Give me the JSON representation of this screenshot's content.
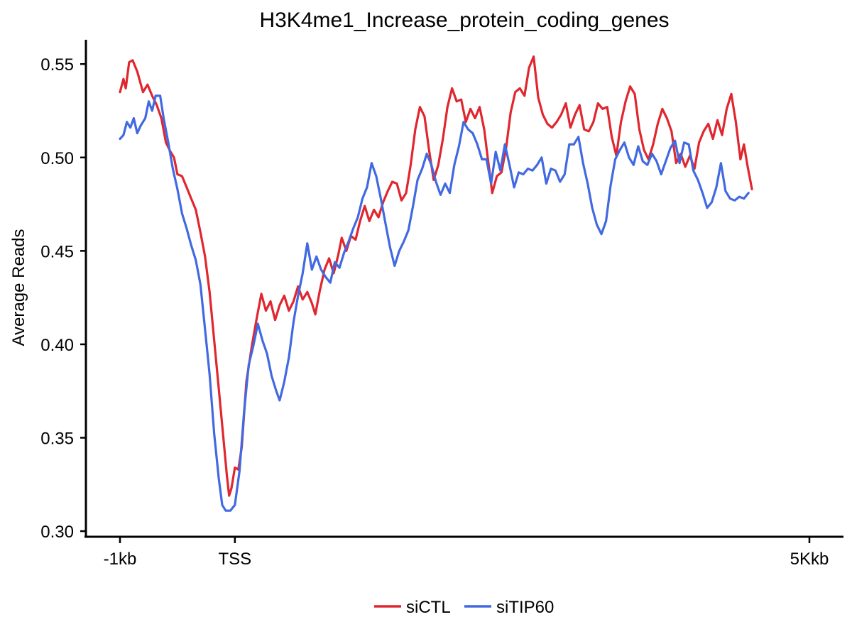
{
  "chart_data": {
    "type": "line",
    "title": "H3K4me1_Increase_protein_coding_genes",
    "xlabel": "",
    "ylabel": "Average Reads",
    "x_tick_labels": [
      "-1kb",
      "TSS",
      "5Kkb"
    ],
    "x_tick_positions": [
      0,
      1,
      6
    ],
    "xlim": [
      0,
      6
    ],
    "ylim": [
      0.297,
      0.563
    ],
    "y_ticks": [
      0.3,
      0.35,
      0.4,
      0.45,
      0.5,
      0.55
    ],
    "y_tick_labels": [
      "0.30",
      "0.35",
      "0.40",
      "0.45",
      "0.50",
      "0.55"
    ],
    "grid": false,
    "legend_position": "bottom",
    "series": [
      {
        "name": "siCTL",
        "color": "#E0262E",
        "points": [
          [
            0.0,
            0.535
          ],
          [
            0.03,
            0.542
          ],
          [
            0.05,
            0.537
          ],
          [
            0.08,
            0.551
          ],
          [
            0.11,
            0.552
          ],
          [
            0.15,
            0.546
          ],
          [
            0.2,
            0.535
          ],
          [
            0.24,
            0.539
          ],
          [
            0.28,
            0.533
          ],
          [
            0.32,
            0.528
          ],
          [
            0.36,
            0.521
          ],
          [
            0.4,
            0.508
          ],
          [
            0.44,
            0.503
          ],
          [
            0.47,
            0.5
          ],
          [
            0.5,
            0.491
          ],
          [
            0.54,
            0.49
          ],
          [
            0.58,
            0.484
          ],
          [
            0.62,
            0.478
          ],
          [
            0.66,
            0.472
          ],
          [
            0.7,
            0.46
          ],
          [
            0.74,
            0.447
          ],
          [
            0.78,
            0.428
          ],
          [
            0.82,
            0.402
          ],
          [
            0.86,
            0.376
          ],
          [
            0.9,
            0.35
          ],
          [
            0.93,
            0.33
          ],
          [
            0.95,
            0.319
          ],
          [
            0.97,
            0.323
          ],
          [
            1.0,
            0.334
          ],
          [
            1.03,
            0.333
          ],
          [
            1.06,
            0.345
          ],
          [
            1.1,
            0.38
          ],
          [
            1.15,
            0.4
          ],
          [
            1.19,
            0.414
          ],
          [
            1.23,
            0.427
          ],
          [
            1.27,
            0.418
          ],
          [
            1.31,
            0.423
          ],
          [
            1.35,
            0.413
          ],
          [
            1.39,
            0.421
          ],
          [
            1.43,
            0.426
          ],
          [
            1.47,
            0.418
          ],
          [
            1.51,
            0.423
          ],
          [
            1.55,
            0.431
          ],
          [
            1.59,
            0.424
          ],
          [
            1.63,
            0.428
          ],
          [
            1.67,
            0.422
          ],
          [
            1.7,
            0.416
          ],
          [
            1.74,
            0.429
          ],
          [
            1.78,
            0.44
          ],
          [
            1.82,
            0.446
          ],
          [
            1.86,
            0.438
          ],
          [
            1.9,
            0.448
          ],
          [
            1.93,
            0.457
          ],
          [
            1.97,
            0.45
          ],
          [
            2.01,
            0.458
          ],
          [
            2.05,
            0.456
          ],
          [
            2.09,
            0.466
          ],
          [
            2.13,
            0.474
          ],
          [
            2.17,
            0.466
          ],
          [
            2.21,
            0.472
          ],
          [
            2.25,
            0.468
          ],
          [
            2.29,
            0.476
          ],
          [
            2.33,
            0.482
          ],
          [
            2.37,
            0.487
          ],
          [
            2.41,
            0.486
          ],
          [
            2.45,
            0.477
          ],
          [
            2.49,
            0.481
          ],
          [
            2.53,
            0.496
          ],
          [
            2.57,
            0.515
          ],
          [
            2.61,
            0.527
          ],
          [
            2.65,
            0.522
          ],
          [
            2.69,
            0.504
          ],
          [
            2.73,
            0.488
          ],
          [
            2.77,
            0.496
          ],
          [
            2.81,
            0.51
          ],
          [
            2.85,
            0.527
          ],
          [
            2.89,
            0.537
          ],
          [
            2.93,
            0.53
          ],
          [
            2.97,
            0.531
          ],
          [
            3.01,
            0.519
          ],
          [
            3.05,
            0.526
          ],
          [
            3.09,
            0.521
          ],
          [
            3.13,
            0.527
          ],
          [
            3.17,
            0.515
          ],
          [
            3.2,
            0.5
          ],
          [
            3.24,
            0.481
          ],
          [
            3.28,
            0.49
          ],
          [
            3.32,
            0.492
          ],
          [
            3.36,
            0.505
          ],
          [
            3.4,
            0.524
          ],
          [
            3.44,
            0.535
          ],
          [
            3.48,
            0.537
          ],
          [
            3.52,
            0.533
          ],
          [
            3.56,
            0.548
          ],
          [
            3.6,
            0.554
          ],
          [
            3.64,
            0.532
          ],
          [
            3.68,
            0.523
          ],
          [
            3.72,
            0.518
          ],
          [
            3.76,
            0.516
          ],
          [
            3.8,
            0.519
          ],
          [
            3.84,
            0.523
          ],
          [
            3.88,
            0.529
          ],
          [
            3.92,
            0.516
          ],
          [
            3.96,
            0.523
          ],
          [
            4.0,
            0.528
          ],
          [
            4.04,
            0.515
          ],
          [
            4.08,
            0.514
          ],
          [
            4.12,
            0.519
          ],
          [
            4.16,
            0.529
          ],
          [
            4.2,
            0.526
          ],
          [
            4.24,
            0.527
          ],
          [
            4.28,
            0.511
          ],
          [
            4.32,
            0.501
          ],
          [
            4.36,
            0.519
          ],
          [
            4.4,
            0.53
          ],
          [
            4.44,
            0.538
          ],
          [
            4.48,
            0.534
          ],
          [
            4.52,
            0.515
          ],
          [
            4.56,
            0.504
          ],
          [
            4.6,
            0.499
          ],
          [
            4.64,
            0.507
          ],
          [
            4.68,
            0.518
          ],
          [
            4.72,
            0.526
          ],
          [
            4.76,
            0.521
          ],
          [
            4.8,
            0.514
          ],
          [
            4.84,
            0.497
          ],
          [
            4.88,
            0.502
          ],
          [
            4.92,
            0.495
          ],
          [
            4.96,
            0.501
          ],
          [
            5.0,
            0.494
          ],
          [
            5.04,
            0.508
          ],
          [
            5.08,
            0.514
          ],
          [
            5.12,
            0.518
          ],
          [
            5.16,
            0.51
          ],
          [
            5.2,
            0.52
          ],
          [
            5.24,
            0.512
          ],
          [
            5.28,
            0.526
          ],
          [
            5.32,
            0.534
          ],
          [
            5.36,
            0.519
          ],
          [
            5.4,
            0.499
          ],
          [
            5.43,
            0.507
          ],
          [
            5.46,
            0.496
          ],
          [
            5.5,
            0.483
          ]
        ]
      },
      {
        "name": "siTIP60",
        "color": "#4169E1",
        "points": [
          [
            0.0,
            0.51
          ],
          [
            0.03,
            0.512
          ],
          [
            0.06,
            0.519
          ],
          [
            0.09,
            0.516
          ],
          [
            0.12,
            0.521
          ],
          [
            0.15,
            0.513
          ],
          [
            0.18,
            0.517
          ],
          [
            0.22,
            0.521
          ],
          [
            0.25,
            0.53
          ],
          [
            0.28,
            0.525
          ],
          [
            0.31,
            0.533
          ],
          [
            0.35,
            0.533
          ],
          [
            0.38,
            0.521
          ],
          [
            0.42,
            0.508
          ],
          [
            0.46,
            0.494
          ],
          [
            0.5,
            0.483
          ],
          [
            0.54,
            0.47
          ],
          [
            0.58,
            0.462
          ],
          [
            0.62,
            0.453
          ],
          [
            0.66,
            0.445
          ],
          [
            0.7,
            0.432
          ],
          [
            0.74,
            0.408
          ],
          [
            0.78,
            0.384
          ],
          [
            0.82,
            0.352
          ],
          [
            0.86,
            0.328
          ],
          [
            0.89,
            0.314
          ],
          [
            0.92,
            0.311
          ],
          [
            0.96,
            0.311
          ],
          [
            1.0,
            0.314
          ],
          [
            1.04,
            0.332
          ],
          [
            1.08,
            0.364
          ],
          [
            1.12,
            0.389
          ],
          [
            1.16,
            0.399
          ],
          [
            1.2,
            0.411
          ],
          [
            1.24,
            0.402
          ],
          [
            1.28,
            0.395
          ],
          [
            1.32,
            0.383
          ],
          [
            1.36,
            0.375
          ],
          [
            1.39,
            0.37
          ],
          [
            1.43,
            0.38
          ],
          [
            1.47,
            0.393
          ],
          [
            1.51,
            0.412
          ],
          [
            1.55,
            0.426
          ],
          [
            1.59,
            0.438
          ],
          [
            1.63,
            0.454
          ],
          [
            1.67,
            0.44
          ],
          [
            1.71,
            0.447
          ],
          [
            1.75,
            0.44
          ],
          [
            1.79,
            0.436
          ],
          [
            1.83,
            0.433
          ],
          [
            1.87,
            0.444
          ],
          [
            1.91,
            0.441
          ],
          [
            1.95,
            0.449
          ],
          [
            1.99,
            0.455
          ],
          [
            2.03,
            0.462
          ],
          [
            2.07,
            0.468
          ],
          [
            2.11,
            0.478
          ],
          [
            2.15,
            0.484
          ],
          [
            2.19,
            0.497
          ],
          [
            2.23,
            0.49
          ],
          [
            2.27,
            0.478
          ],
          [
            2.31,
            0.465
          ],
          [
            2.35,
            0.452
          ],
          [
            2.39,
            0.442
          ],
          [
            2.43,
            0.45
          ],
          [
            2.47,
            0.455
          ],
          [
            2.51,
            0.461
          ],
          [
            2.55,
            0.474
          ],
          [
            2.59,
            0.488
          ],
          [
            2.63,
            0.494
          ],
          [
            2.67,
            0.502
          ],
          [
            2.71,
            0.496
          ],
          [
            2.75,
            0.487
          ],
          [
            2.79,
            0.48
          ],
          [
            2.83,
            0.486
          ],
          [
            2.87,
            0.481
          ],
          [
            2.91,
            0.496
          ],
          [
            2.95,
            0.506
          ],
          [
            2.99,
            0.519
          ],
          [
            3.03,
            0.515
          ],
          [
            3.07,
            0.513
          ],
          [
            3.11,
            0.507
          ],
          [
            3.15,
            0.499
          ],
          [
            3.19,
            0.499
          ],
          [
            3.23,
            0.486
          ],
          [
            3.27,
            0.503
          ],
          [
            3.31,
            0.493
          ],
          [
            3.35,
            0.507
          ],
          [
            3.39,
            0.496
          ],
          [
            3.43,
            0.484
          ],
          [
            3.47,
            0.492
          ],
          [
            3.51,
            0.491
          ],
          [
            3.55,
            0.494
          ],
          [
            3.59,
            0.493
          ],
          [
            3.63,
            0.496
          ],
          [
            3.67,
            0.5
          ],
          [
            3.71,
            0.486
          ],
          [
            3.75,
            0.494
          ],
          [
            3.79,
            0.493
          ],
          [
            3.83,
            0.487
          ],
          [
            3.87,
            0.491
          ],
          [
            3.91,
            0.507
          ],
          [
            3.95,
            0.507
          ],
          [
            3.99,
            0.511
          ],
          [
            4.03,
            0.497
          ],
          [
            4.07,
            0.486
          ],
          [
            4.11,
            0.473
          ],
          [
            4.15,
            0.464
          ],
          [
            4.19,
            0.459
          ],
          [
            4.23,
            0.466
          ],
          [
            4.27,
            0.485
          ],
          [
            4.31,
            0.499
          ],
          [
            4.35,
            0.504
          ],
          [
            4.39,
            0.508
          ],
          [
            4.43,
            0.5
          ],
          [
            4.47,
            0.496
          ],
          [
            4.51,
            0.506
          ],
          [
            4.55,
            0.498
          ],
          [
            4.59,
            0.496
          ],
          [
            4.63,
            0.502
          ],
          [
            4.67,
            0.498
          ],
          [
            4.71,
            0.491
          ],
          [
            4.75,
            0.498
          ],
          [
            4.79,
            0.505
          ],
          [
            4.83,
            0.509
          ],
          [
            4.87,
            0.497
          ],
          [
            4.91,
            0.508
          ],
          [
            4.95,
            0.507
          ],
          [
            4.99,
            0.493
          ],
          [
            5.03,
            0.488
          ],
          [
            5.07,
            0.481
          ],
          [
            5.11,
            0.473
          ],
          [
            5.15,
            0.476
          ],
          [
            5.19,
            0.484
          ],
          [
            5.23,
            0.497
          ],
          [
            5.27,
            0.482
          ],
          [
            5.31,
            0.478
          ],
          [
            5.35,
            0.477
          ],
          [
            5.39,
            0.479
          ],
          [
            5.43,
            0.478
          ],
          [
            5.47,
            0.481
          ]
        ]
      }
    ]
  }
}
